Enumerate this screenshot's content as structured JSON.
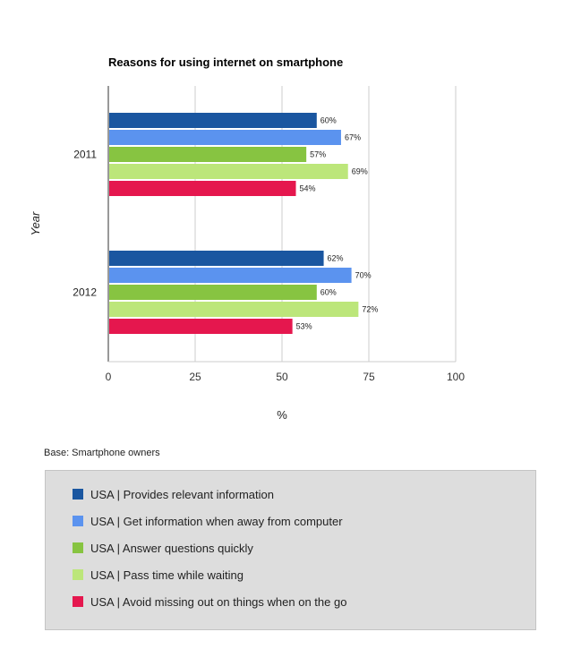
{
  "chart_data": {
    "type": "bar",
    "orientation": "horizontal",
    "title": "Reasons for using internet on smartphone",
    "xlabel": "%",
    "ylabel": "Year",
    "xlim": [
      0,
      100
    ],
    "xticks": [
      "0",
      "25",
      "50",
      "75",
      "100"
    ],
    "categories": [
      "2011",
      "2012"
    ],
    "grid": true,
    "legend_position": "bottom",
    "series": [
      {
        "name": "USA | Provides relevant information",
        "color": "#1a56a0",
        "values": [
          60,
          62
        ],
        "labels": [
          "60%",
          "62%"
        ]
      },
      {
        "name": "USA | Get information when away from computer",
        "color": "#5b93ef",
        "values": [
          67,
          70
        ],
        "labels": [
          "67%",
          "70%"
        ]
      },
      {
        "name": "USA | Answer questions quickly",
        "color": "#87c441",
        "values": [
          57,
          60
        ],
        "labels": [
          "57%",
          "60%"
        ]
      },
      {
        "name": "USA | Pass time while waiting",
        "color": "#bce67a",
        "values": [
          69,
          72
        ],
        "labels": [
          "69%",
          "72%"
        ]
      },
      {
        "name": "USA | Avoid missing out on things when on the go",
        "color": "#e5174e",
        "values": [
          54,
          53
        ],
        "labels": [
          "54%",
          "53%"
        ]
      }
    ]
  },
  "footnote": "Base: Smartphone owners"
}
